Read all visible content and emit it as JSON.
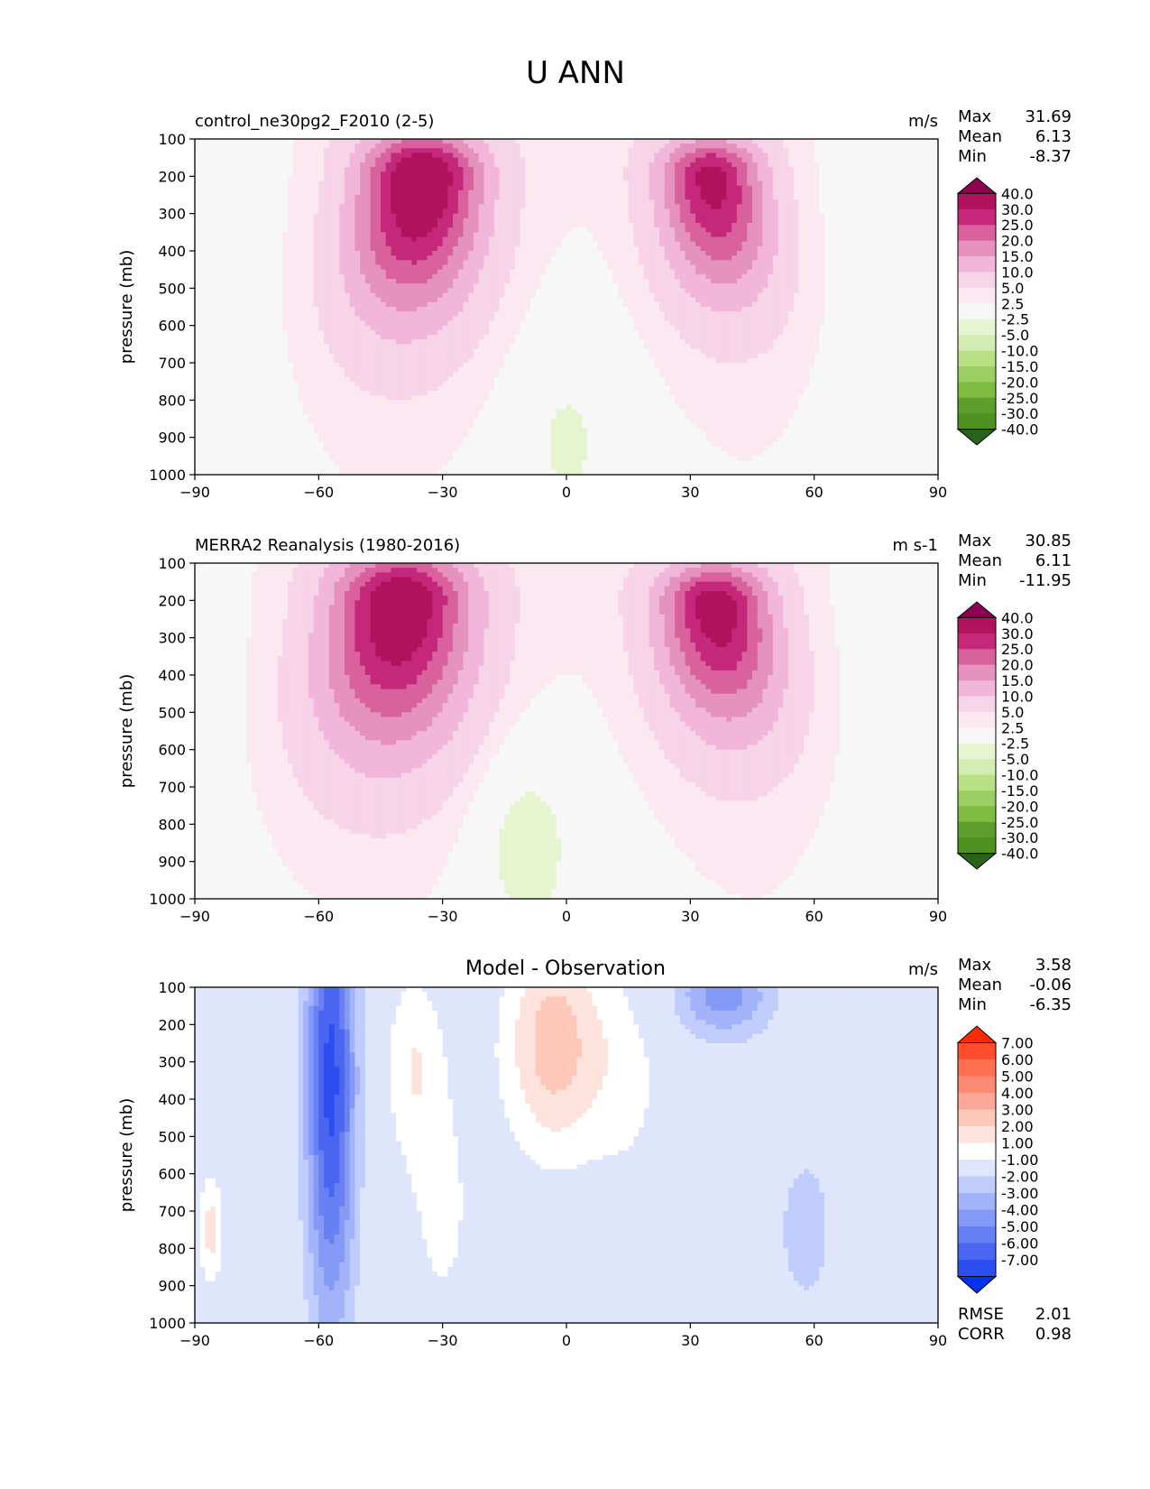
{
  "figure_title": "U ANN",
  "ylabel": "pressure (mb)",
  "x_ticks": [
    "−90",
    "−60",
    "−30",
    "0",
    "30",
    "60",
    "90"
  ],
  "y_ticks": [
    "100",
    "200",
    "300",
    "400",
    "500",
    "600",
    "700",
    "800",
    "900",
    "1000"
  ],
  "stat_labels": {
    "max": "Max",
    "mean": "Mean",
    "min": "Min",
    "rmse": "RMSE",
    "corr": "CORR"
  },
  "colors": {
    "abs_scale": [
      "#8e0152",
      "#b1125e",
      "#c5287a",
      "#d8619e",
      "#e592bf",
      "#f1b6da",
      "#f7d4e8",
      "#fbe8f1",
      "#f7f7f7",
      "#e6f5d0",
      "#d2ecb3",
      "#b8e186",
      "#9bcf63",
      "#7fbc41",
      "#5e9e2e",
      "#4d9221",
      "#276419"
    ],
    "diff_scale": [
      "#ff2a00",
      "#ff4d2e",
      "#ff6f52",
      "#fd8b73",
      "#fca797",
      "#fdc7ba",
      "#fee3dc",
      "#ffffff",
      "#dfe6fc",
      "#c0ccfb",
      "#a3b3f9",
      "#8599f6",
      "#6780f4",
      "#4a66f1",
      "#2c4def",
      "#0033ee"
    ]
  },
  "panels": [
    {
      "title": "control_ne30pg2_F2010 (2-5)",
      "units": "m/s",
      "stats": {
        "max": "31.69",
        "mean": "6.13",
        "min": "-8.37"
      },
      "colorbar_labels": [
        "40.0",
        "30.0",
        "25.0",
        "20.0",
        "15.0",
        "10.0",
        "5.0",
        "2.5",
        "-2.5",
        "-5.0",
        "-10.0",
        "-15.0",
        "-20.0",
        "-25.0",
        "-30.0",
        "-40.0"
      ]
    },
    {
      "title": "MERRA2 Reanalysis (1980-2016)",
      "units": "m s-1",
      "stats": {
        "max": "30.85",
        "mean": "6.11",
        "min": "-11.95"
      },
      "colorbar_labels": [
        "40.0",
        "30.0",
        "25.0",
        "20.0",
        "15.0",
        "10.0",
        "5.0",
        "2.5",
        "-2.5",
        "-5.0",
        "-10.0",
        "-15.0",
        "-20.0",
        "-25.0",
        "-30.0",
        "-40.0"
      ]
    },
    {
      "title": "Model - Observation",
      "units": "m/s",
      "stats": {
        "max": "3.58",
        "mean": "-0.06",
        "min": "-6.35",
        "rmse": "2.01",
        "corr": "0.98"
      },
      "colorbar_labels": [
        "7.00",
        "6.00",
        "5.00",
        "4.00",
        "3.00",
        "2.00",
        "1.00",
        "-1.00",
        "-2.00",
        "-3.00",
        "-4.00",
        "-5.00",
        "-6.00",
        "-7.00"
      ]
    }
  ],
  "chart_data": [
    {
      "type": "heatmap",
      "title": "control_ne30pg2_F2010 (2-5)",
      "xlabel": "",
      "ylabel": "pressure (mb)",
      "xlim": [
        -90,
        90
      ],
      "ylim": [
        1000,
        100
      ],
      "units": "m/s",
      "levels": [
        -40,
        -30,
        -25,
        -20,
        -15,
        -10,
        -5,
        -2.5,
        2.5,
        5,
        10,
        15,
        20,
        25,
        30,
        40
      ],
      "jets": [
        {
          "lat": -35,
          "plev": 200,
          "peak": 31.69,
          "width_deg": 14,
          "depth_mb": 230,
          "lean_down": 0.45,
          "lean_dir": -1
        },
        {
          "lat": 35,
          "plev": 200,
          "peak": 27.5,
          "width_deg": 12,
          "depth_mb": 200,
          "lean_down": 0.5,
          "lean_dir": 1
        }
      ],
      "easterlies": {
        "lat": 0,
        "plev": 900,
        "value": -4.0
      }
    },
    {
      "type": "heatmap",
      "title": "MERRA2 Reanalysis (1980-2016)",
      "xlabel": "",
      "ylabel": "pressure (mb)",
      "xlim": [
        -90,
        90
      ],
      "ylim": [
        1000,
        100
      ],
      "units": "m s-1",
      "levels": [
        -40,
        -30,
        -25,
        -20,
        -15,
        -10,
        -5,
        -2.5,
        2.5,
        5,
        10,
        15,
        20,
        25,
        30,
        40
      ],
      "jets": [
        {
          "lat": -40,
          "plev": 200,
          "peak": 30.85,
          "width_deg": 16,
          "depth_mb": 250,
          "lean_down": 0.4,
          "lean_dir": -1
        },
        {
          "lat": 36,
          "plev": 210,
          "peak": 28.5,
          "width_deg": 13,
          "depth_mb": 210,
          "lean_down": 0.5,
          "lean_dir": 1
        }
      ],
      "easterlies": {
        "lat": -10,
        "plev": 850,
        "value": -6.0
      }
    },
    {
      "type": "heatmap",
      "title": "Model - Observation",
      "xlabel": "",
      "ylabel": "pressure (mb)",
      "xlim": [
        -90,
        90
      ],
      "ylim": [
        1000,
        100
      ],
      "units": "m/s",
      "levels": [
        -7,
        -6,
        -5,
        -4,
        -3,
        -2,
        -1,
        1,
        2,
        3,
        4,
        5,
        6,
        7
      ],
      "features": [
        {
          "lat": -57,
          "plev": 350,
          "value": -6.35,
          "width_deg": 6,
          "depth_mb": 650
        },
        {
          "lat": -3,
          "plev": 250,
          "value": 3.58,
          "width_deg": 12,
          "depth_mb": 300
        },
        {
          "lat": -37,
          "plev": 300,
          "value": 1.8,
          "width_deg": 7,
          "depth_mb": 250
        },
        {
          "lat": 38,
          "plev": 120,
          "value": -3.5,
          "width_deg": 12,
          "depth_mb": 120
        },
        {
          "lat": 58,
          "plev": 750,
          "value": -1.5,
          "width_deg": 8,
          "depth_mb": 250
        },
        {
          "lat": -86,
          "plev": 750,
          "value": 2.5,
          "width_deg": 3,
          "depth_mb": 150
        },
        {
          "lat": -30,
          "plev": 700,
          "value": 1.2,
          "width_deg": 10,
          "depth_mb": 400
        },
        {
          "lat": 15,
          "plev": 350,
          "value": 1.2,
          "width_deg": 10,
          "depth_mb": 300
        }
      ]
    }
  ]
}
